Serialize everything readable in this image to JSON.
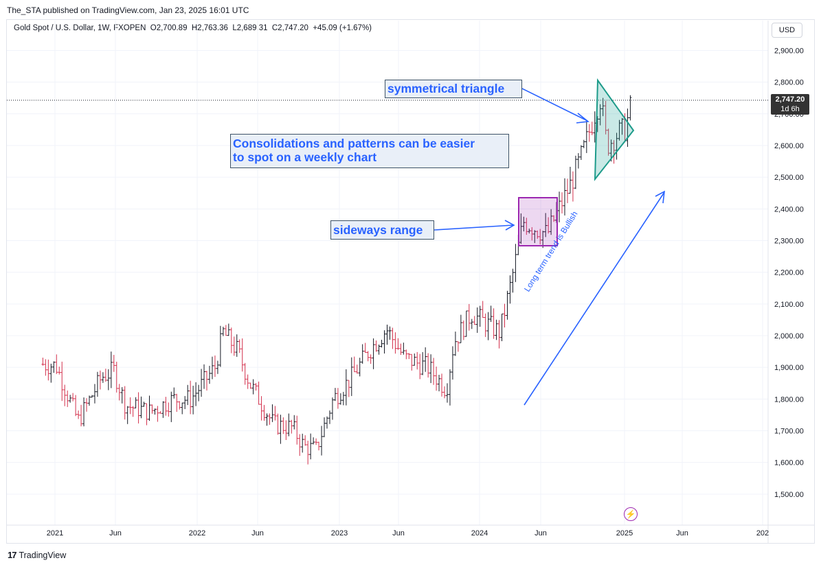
{
  "attribution": "The_STA published on TradingView.com, Jan 23, 2025 16:01 UTC",
  "legend": "Gold Spot / U.S. Dollar, 1W, FXOPEN  O2,700.89  H2,763.36  L2,689.31  C2,747.20  +45.09 (+1.67%)",
  "currency": "USD",
  "price_tag": {
    "value": "2,747.20",
    "countdown": "1d 6h"
  },
  "annotations": {
    "triangle": "symmetrical triangle",
    "consolidation_line1": "Consolidations and patterns can be easier",
    "consolidation_line2": "to spot on a weekly chart",
    "range": "sideways range",
    "trend": "Long term trend is Bullish"
  },
  "footer": {
    "brand": "TradingView"
  },
  "colors": {
    "up": "#131722",
    "down": "#d32f4b",
    "accent": "#2962ff",
    "triangle": "#26a69a",
    "range_box": "#9c27b0"
  },
  "chart_data": {
    "type": "ohlc",
    "symbol": "Gold Spot / U.S. Dollar",
    "interval": "1W",
    "ylim": [
      1450,
      2960
    ],
    "y_ticks": [
      "2,900.00",
      "2,800.00",
      "2,700.00",
      "2,600.00",
      "2,500.00",
      "2,400.00",
      "2,300.00",
      "2,200.00",
      "2,100.00",
      "2,000.00",
      "1,900.00",
      "1,800.00",
      "1,700.00",
      "1,600.00",
      "1,500.00"
    ],
    "x_ticks": [
      "2021",
      "Jun",
      "2022",
      "Jun",
      "2023",
      "Jun",
      "2024",
      "Jun",
      "2025",
      "Jun",
      "202"
    ],
    "last_close": 2747.2,
    "series": [
      {
        "date": "2020-12-01",
        "close": 1910
      },
      {
        "date": "2021-01-04",
        "close": 1905
      },
      {
        "date": "2021-03-01",
        "close": 1730
      },
      {
        "date": "2021-05-01",
        "close": 1870
      },
      {
        "date": "2021-06-01",
        "close": 1890
      },
      {
        "date": "2021-07-01",
        "close": 1780
      },
      {
        "date": "2021-09-01",
        "close": 1760
      },
      {
        "date": "2021-11-01",
        "close": 1800
      },
      {
        "date": "2021-12-15",
        "close": 1800
      },
      {
        "date": "2022-02-15",
        "close": 1900
      },
      {
        "date": "2022-03-08",
        "close": 2010
      },
      {
        "date": "2022-04-15",
        "close": 1950
      },
      {
        "date": "2022-05-15",
        "close": 1850
      },
      {
        "date": "2022-07-15",
        "close": 1720
      },
      {
        "date": "2022-09-01",
        "close": 1710
      },
      {
        "date": "2022-10-01",
        "close": 1650
      },
      {
        "date": "2022-11-01",
        "close": 1640
      },
      {
        "date": "2022-12-15",
        "close": 1800
      },
      {
        "date": "2023-02-01",
        "close": 1870
      },
      {
        "date": "2023-03-15",
        "close": 1950
      },
      {
        "date": "2023-05-01",
        "close": 2020
      },
      {
        "date": "2023-06-15",
        "close": 1930
      },
      {
        "date": "2023-08-15",
        "close": 1900
      },
      {
        "date": "2023-10-01",
        "close": 1830
      },
      {
        "date": "2023-10-20",
        "close": 1980
      },
      {
        "date": "2023-12-04",
        "close": 2070
      },
      {
        "date": "2024-02-15",
        "close": 2010
      },
      {
        "date": "2024-03-15",
        "close": 2170
      },
      {
        "date": "2024-04-15",
        "close": 2360
      },
      {
        "date": "2024-05-15",
        "close": 2340
      },
      {
        "date": "2024-06-15",
        "close": 2320
      },
      {
        "date": "2024-07-15",
        "close": 2400
      },
      {
        "date": "2024-08-15",
        "close": 2480
      },
      {
        "date": "2024-09-15",
        "close": 2580
      },
      {
        "date": "2024-10-15",
        "close": 2700
      },
      {
        "date": "2024-10-30",
        "close": 2750
      },
      {
        "date": "2024-11-15",
        "close": 2600
      },
      {
        "date": "2024-12-15",
        "close": 2640
      },
      {
        "date": "2025-01-01",
        "close": 2650
      },
      {
        "date": "2025-01-20",
        "close": 2747.2
      }
    ]
  }
}
